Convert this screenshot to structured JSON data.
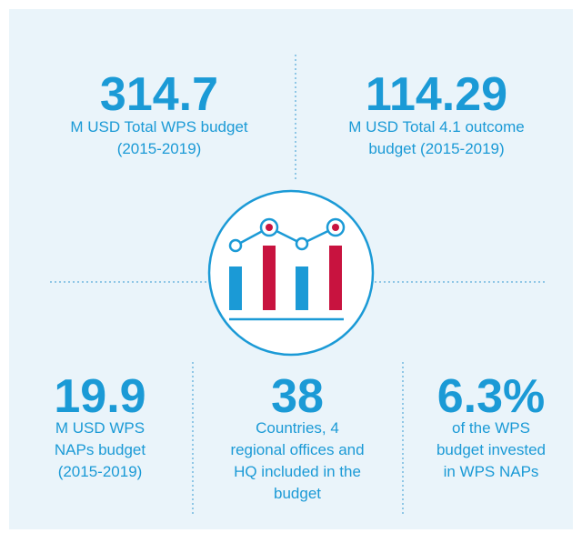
{
  "stats": [
    {
      "value": "314.7",
      "label": [
        "M USD Total WPS budget",
        "(2015-2019)"
      ]
    },
    {
      "value": "114.29",
      "label": [
        "M USD Total 4.1 outcome",
        "budget  (2015-2019)"
      ]
    },
    {
      "value": "19.9",
      "label": [
        "M USD WPS",
        "NAPs budget",
        "(2015-2019)"
      ]
    },
    {
      "value": "38",
      "label": [
        "Countries, 4",
        "regional offices and",
        "HQ included in the",
        "budget"
      ]
    },
    {
      "value": "6.3%",
      "label": [
        "of the WPS",
        "budget invested",
        "in WPS NAPs"
      ]
    }
  ]
}
